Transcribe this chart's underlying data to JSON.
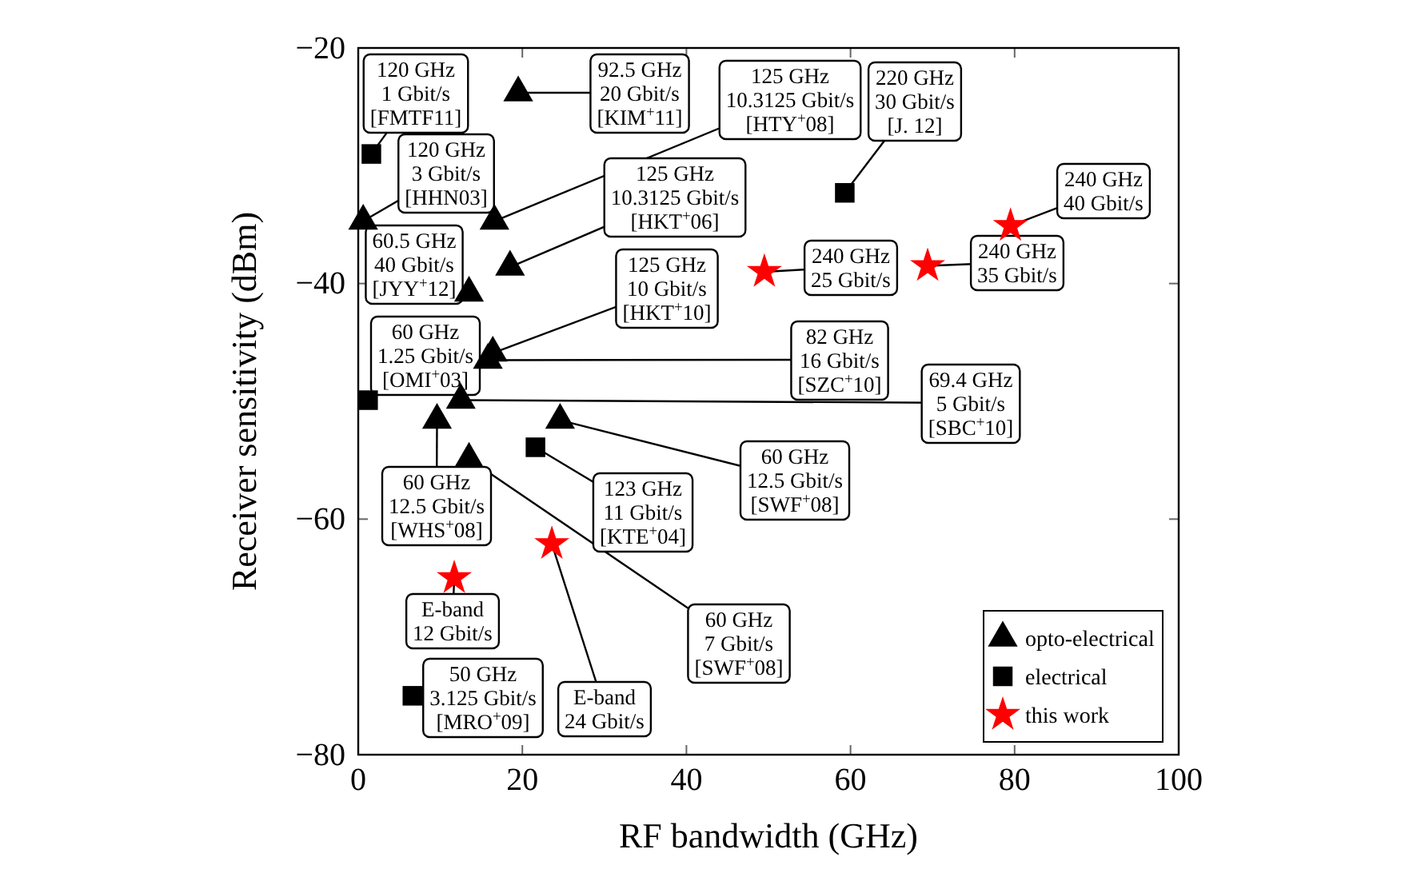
{
  "chart_data": {
    "type": "scatter",
    "xlabel": "RF bandwidth (GHz)",
    "ylabel": "Receiver sensitivity (dBm)",
    "xlim": [
      0,
      100
    ],
    "ylim": [
      -80,
      -20
    ],
    "xticks": [
      0,
      20,
      40,
      60,
      80,
      100
    ],
    "yticks": [
      {
        "value": -80,
        "label": "−80"
      },
      {
        "value": -60,
        "label": "−60"
      },
      {
        "value": -40,
        "label": "−40"
      },
      {
        "value": -20,
        "label": "−20"
      }
    ],
    "legend": "bottom right",
    "series": [
      {
        "name": "opto-electrical",
        "color": "#000000",
        "marker": "triangle",
        "x": [
          19.5,
          0.6,
          16.6,
          18.5,
          13.5,
          16.4,
          15.8,
          12.5,
          9.6,
          24.6,
          13.5
        ],
        "values": [
          -23.8,
          -34.7,
          -34.7,
          -38.6,
          -40.8,
          -45.9,
          -46.5,
          -49.9,
          -51.6,
          -51.6,
          -54.9
        ]
      },
      {
        "name": "electrical",
        "color": "#000000",
        "marker": "square",
        "x": [
          1.6,
          59.3,
          1.2,
          21.6,
          6.6
        ],
        "values": [
          -29.0,
          -32.3,
          -49.9,
          -53.9,
          -75.0
        ]
      },
      {
        "name": "this work",
        "color": "#ff0000",
        "marker": "star",
        "x": [
          79.5,
          69.4,
          49.5,
          11.7,
          23.6
        ],
        "values": [
          -35.1,
          -38.5,
          -39.0,
          -65.0,
          -62.1
        ]
      }
    ],
    "annotations": [
      {
        "text": "120 GHz\n1 Gbit/s\n[FMTF11]",
        "x": 1.6,
        "y": -29.0
      },
      {
        "text": "92.5 GHz\n20 Gbit/s\n[KIM$^{+}$11]",
        "x": 19.5,
        "y": -23.8
      },
      {
        "text": "125 GHz\n10.3125 Gbit/s\n[HTY$^{+}$08]",
        "x": 16.6,
        "y": -34.7
      },
      {
        "text": "220 GHz\n30 Gbit/s\n[J. 12]",
        "x": 59.3,
        "y": -32.3
      },
      {
        "text": "240 GHz\n40 Gbit/s",
        "x": 79.5,
        "y": -35.1
      },
      {
        "text": "120 GHz\n3 Gbit/s\n[HHN03]",
        "x": 0.6,
        "y": -34.7
      },
      {
        "text": "125 GHz\n10.3125 Gbit/s\n[HKT$^{+}$06]",
        "x": 18.5,
        "y": -38.6
      },
      {
        "text": "60.5 GHz\n40 Gbit/s\n[JYY$^{+}$12]",
        "x": 13.5,
        "y": -40.8
      },
      {
        "text": "240 GHz\n25 Gbit/s",
        "x": 49.5,
        "y": -39.0
      },
      {
        "text": "240 GHz\n35 Gbit/s",
        "x": 69.4,
        "y": -38.5
      },
      {
        "text": "125 GHz\n10 Gbit/s\n[HKT$^{+}$10]",
        "x": 16.4,
        "y": -45.9
      },
      {
        "text": "60 GHz\n1.25 Gbit/s\n[OMI$^{+}$03]",
        "x": 1.2,
        "y": -49.9
      },
      {
        "text": "82 GHz\n16 Gbit/s\n[SZC$^{+}$10]",
        "x": 15.8,
        "y": -46.5
      },
      {
        "text": "69.4 GHz\n5 Gbit/s\n[SBC$^{+}$10]",
        "x": 12.5,
        "y": -49.9
      },
      {
        "text": "60 GHz\n12.5 Gbit/s\n[SWF$^{+}$08]",
        "x": 24.6,
        "y": -51.6
      },
      {
        "text": "60 GHz\n12.5 Gbit/s\n[WHS$^{+}$08]",
        "x": 9.6,
        "y": -51.6
      },
      {
        "text": "123 GHz\n11 Gbit/s\n[KTE$^{+}$04]",
        "x": 21.6,
        "y": -53.9
      },
      {
        "text": "60 GHz\n7 Gbit/s\n[SWF$^{+}$08]",
        "x": 13.5,
        "y": -54.9
      },
      {
        "text": "E-band\n12 Gbit/s",
        "x": 11.7,
        "y": -65.0
      },
      {
        "text": "50 GHz\n3.125 Gbit/s\n[MRO$^{+}$09]",
        "x": 6.6,
        "y": -75.0
      },
      {
        "text": "E-band\n24 Gbit/s",
        "x": 23.6,
        "y": -62.1
      }
    ]
  }
}
